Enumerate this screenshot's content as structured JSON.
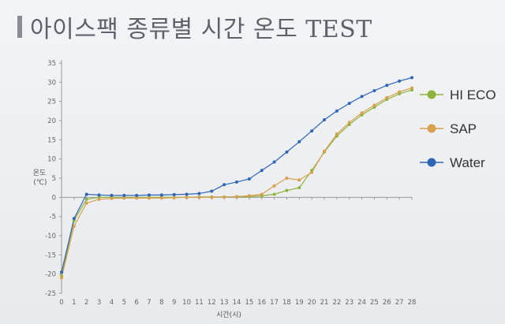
{
  "title": "아이스팩 종류별 시간 온도 TEST",
  "chart_data": {
    "type": "line",
    "xlabel": "시간(시)",
    "ylabel": [
      "온도",
      "(℃)"
    ],
    "x": [
      0,
      1,
      2,
      3,
      4,
      5,
      6,
      7,
      8,
      9,
      10,
      11,
      12,
      13,
      14,
      15,
      16,
      17,
      18,
      19,
      20,
      21,
      22,
      23,
      24,
      25,
      26,
      27,
      28
    ],
    "xlim": [
      0,
      28
    ],
    "ylim": [
      -25,
      35
    ],
    "yticks": [
      -25,
      -20,
      -15,
      -10,
      -5,
      0,
      5,
      10,
      15,
      20,
      25,
      30,
      35
    ],
    "grid": false,
    "legend_position": "right",
    "series": [
      {
        "name": "HI ECO",
        "color": "#8db33a",
        "values": [
          -20.5,
          -6,
          -0.5,
          0,
          0,
          0,
          0,
          0,
          0,
          0,
          0,
          0.1,
          0.1,
          0.1,
          0.1,
          0.2,
          0.4,
          0.8,
          1.8,
          2.5,
          7,
          11.8,
          16,
          19,
          21.5,
          23.5,
          25.5,
          27,
          28
        ]
      },
      {
        "name": "SAP",
        "color": "#d9a050",
        "values": [
          -21,
          -7.5,
          -1.5,
          -0.5,
          -0.3,
          -0.2,
          -0.2,
          -0.2,
          -0.2,
          -0.1,
          0,
          0,
          0,
          0.1,
          0.2,
          0.4,
          0.8,
          3,
          5,
          4.5,
          6.5,
          12,
          16.5,
          19.5,
          22,
          24,
          26,
          27.5,
          28.5
        ]
      },
      {
        "name": "Water",
        "color": "#2f66b4",
        "values": [
          -19.5,
          -5.5,
          0.8,
          0.6,
          0.5,
          0.5,
          0.5,
          0.6,
          0.6,
          0.7,
          0.8,
          1,
          1.6,
          3.3,
          4,
          4.8,
          7,
          9.2,
          11.8,
          14.5,
          17.3,
          20.2,
          22.5,
          24.5,
          26.3,
          27.8,
          29.2,
          30.3,
          31.2
        ]
      }
    ]
  }
}
